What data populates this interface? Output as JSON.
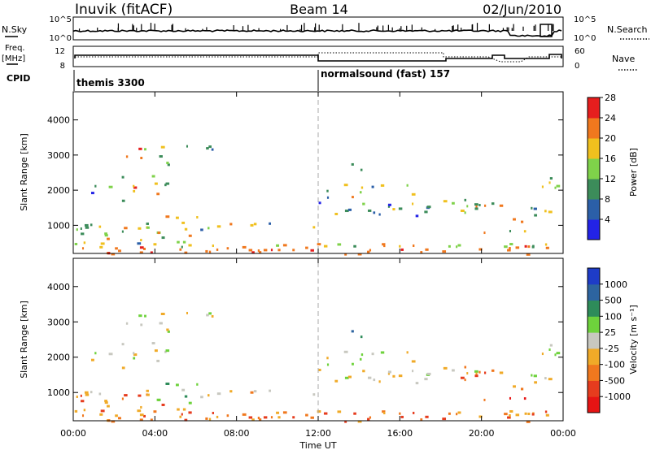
{
  "header": {
    "station": "Inuvik (fitACF)",
    "beam": "Beam 14",
    "date": "02/Jun/2010"
  },
  "top_panel": {
    "left_label": "N.Sky",
    "right_label": "N.Search",
    "left_ticks": [
      "10^5",
      "10^0"
    ],
    "right_ticks": [
      "10^5",
      "10^0"
    ]
  },
  "freq_panel": {
    "left_label_1": "Freq.",
    "left_label_2": "[MHz]",
    "right_label": "Nave",
    "left_ticks": [
      "12",
      "8"
    ],
    "right_ticks": [
      "60",
      "0"
    ]
  },
  "cpid": {
    "label": "CPID",
    "modes": [
      {
        "name": "themis 3300"
      },
      {
        "name": "normalsound (fast) 157"
      }
    ]
  },
  "chart_data": [
    {
      "type": "heatmap",
      "ylabel": "Slant Range [km]",
      "y_ticks": [
        "1000",
        "2000",
        "3000",
        "4000"
      ],
      "colorbar_label": "Power [dB]",
      "colorbar_ticks": [
        "4",
        "8",
        "12",
        "16",
        "20",
        "24",
        "28"
      ],
      "colorbar_colors": [
        "#2323e6",
        "#2b5fa8",
        "#3c8c5a",
        "#7fd24a",
        "#f0c01e",
        "#f0781e",
        "#e61e1e"
      ]
    },
    {
      "type": "heatmap",
      "ylabel": "Slant Range [km]",
      "y_ticks": [
        "1000",
        "2000",
        "3000",
        "4000"
      ],
      "colorbar_label": "Velocity [m s⁻¹]",
      "colorbar_ticks": [
        "1000",
        "500",
        "100",
        "25",
        "-25",
        "-100",
        "-500",
        "-1000"
      ],
      "colorbar_colors": [
        "#1e3cc8",
        "#2d64a0",
        "#2e8c5a",
        "#6ed23c",
        "#c8c8c0",
        "#f0aa28",
        "#f0781e",
        "#e63c1e",
        "#e61414"
      ]
    }
  ],
  "x_axis": {
    "ticks": [
      "00:00",
      "04:00",
      "08:00",
      "12:00",
      "16:00",
      "20:00",
      "00:00"
    ],
    "label": "Time UT"
  }
}
